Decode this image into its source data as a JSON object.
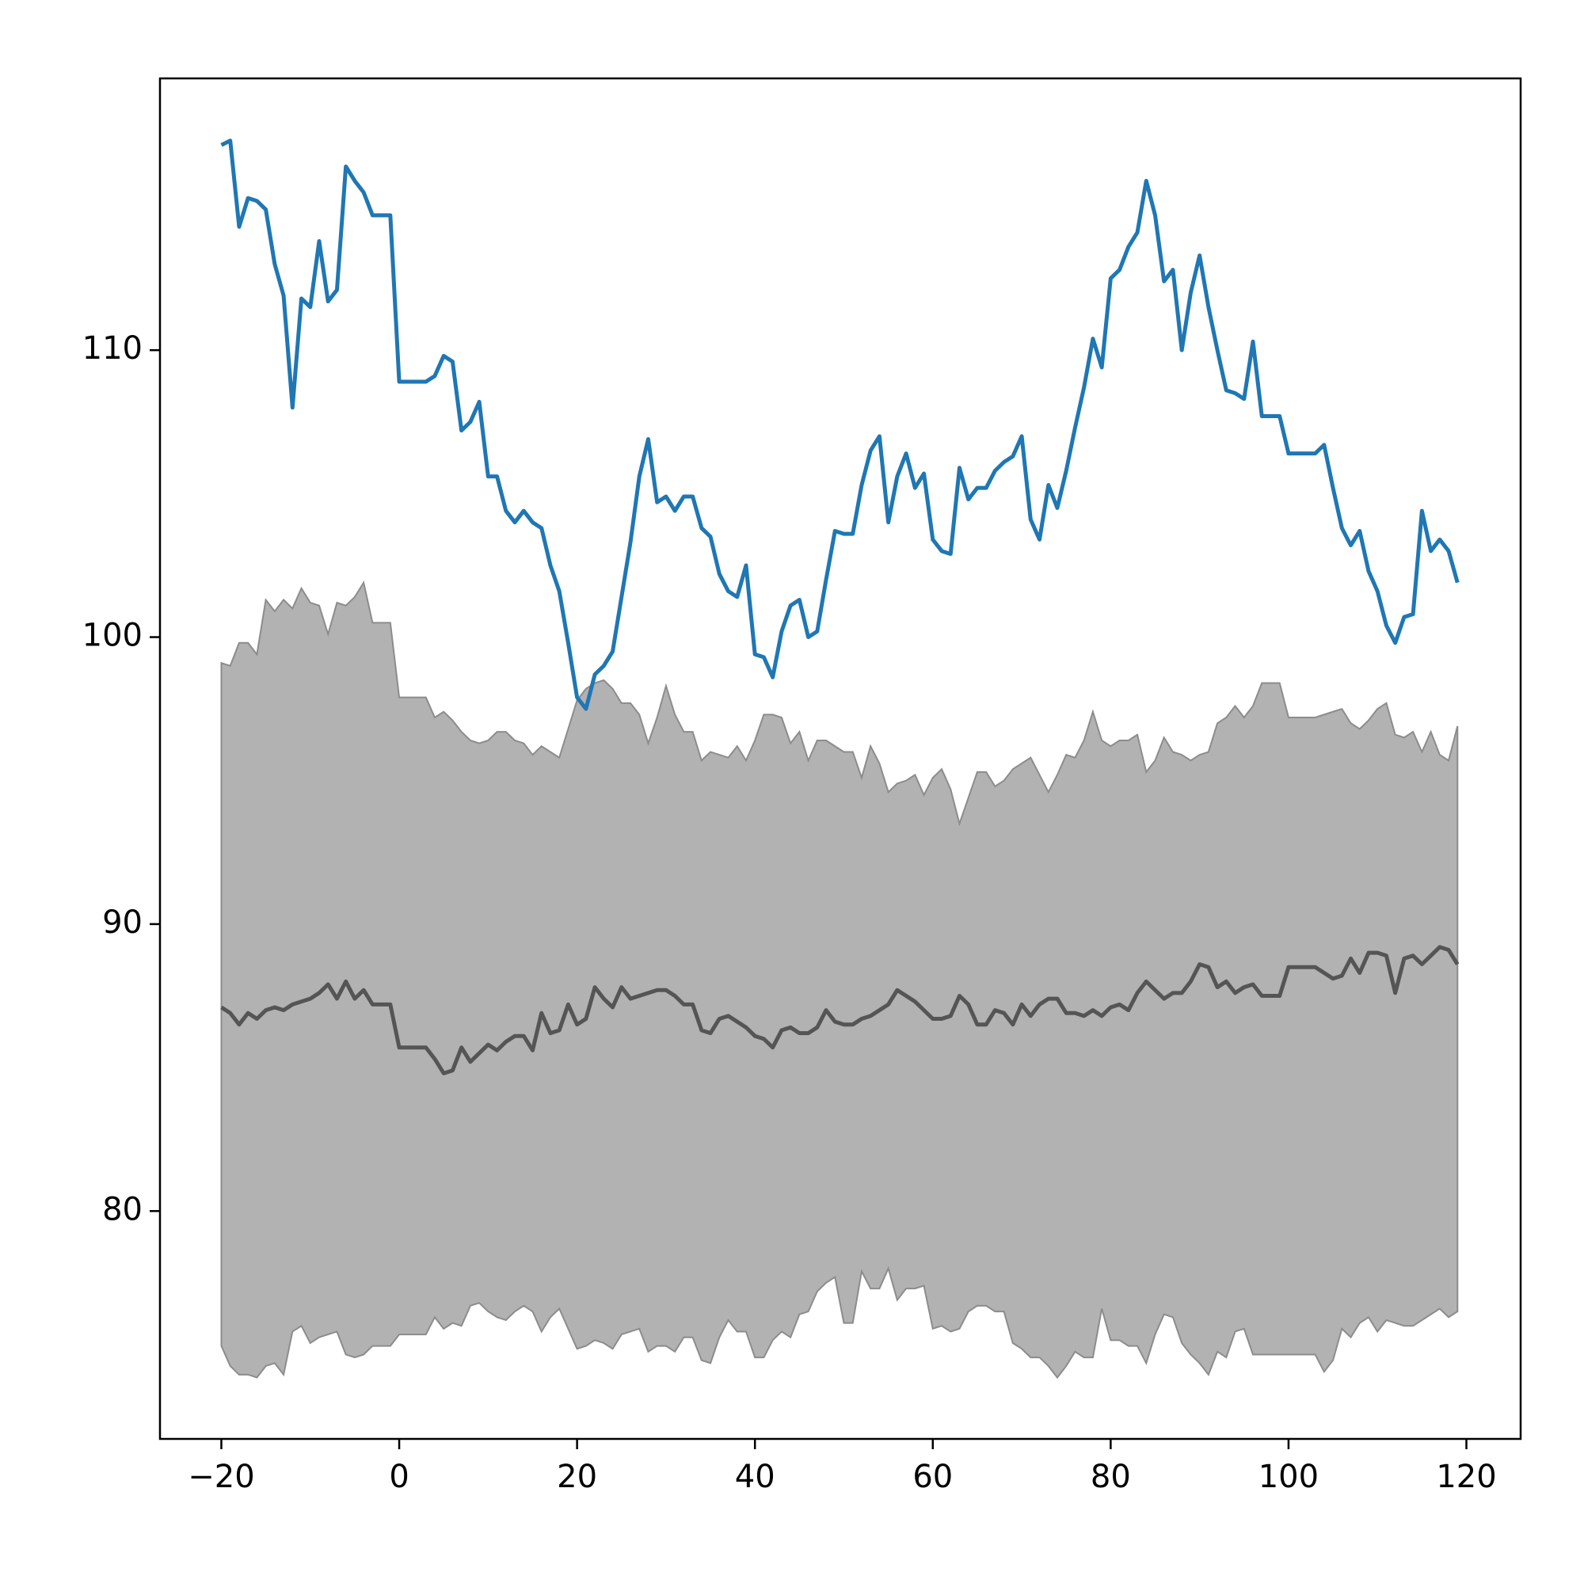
{
  "chart_data": {
    "type": "line",
    "x": [
      -20,
      -19,
      -18,
      -17,
      -16,
      -15,
      -14,
      -13,
      -12,
      -11,
      -10,
      -9,
      -8,
      -7,
      -6,
      -5,
      -4,
      -3,
      -2,
      -1,
      0,
      1,
      2,
      3,
      4,
      5,
      6,
      7,
      8,
      9,
      10,
      11,
      12,
      13,
      14,
      15,
      16,
      17,
      18,
      19,
      20,
      21,
      22,
      23,
      24,
      25,
      26,
      27,
      28,
      29,
      30,
      31,
      32,
      33,
      34,
      35,
      36,
      37,
      38,
      39,
      40,
      41,
      42,
      43,
      44,
      45,
      46,
      47,
      48,
      49,
      50,
      51,
      52,
      53,
      54,
      55,
      56,
      57,
      58,
      59,
      60,
      61,
      62,
      63,
      64,
      65,
      66,
      67,
      68,
      69,
      70,
      71,
      72,
      73,
      74,
      75,
      76,
      77,
      78,
      79,
      80,
      81,
      82,
      83,
      84,
      85,
      86,
      87,
      88,
      89,
      90,
      91,
      92,
      93,
      94,
      95,
      96,
      97,
      98,
      99,
      100,
      101,
      102,
      103,
      104,
      105,
      106,
      107,
      108,
      109,
      110,
      111,
      112,
      113,
      114,
      115,
      116,
      117,
      118,
      119
    ],
    "fill_between": {
      "color": "#b2b2b2",
      "edge_color": "#8c8c8c",
      "lower": [
        75.3,
        74.6,
        74.3,
        74.3,
        74.2,
        74.6,
        74.7,
        74.3,
        75.8,
        76.0,
        75.4,
        75.6,
        75.7,
        75.8,
        75.0,
        74.9,
        75.0,
        75.3,
        75.3,
        75.3,
        75.7,
        75.7,
        75.7,
        75.7,
        76.3,
        75.9,
        76.1,
        76.0,
        76.7,
        76.8,
        76.5,
        76.3,
        76.2,
        76.5,
        76.7,
        76.5,
        75.8,
        76.3,
        76.6,
        75.9,
        75.2,
        75.3,
        75.5,
        75.4,
        75.2,
        75.7,
        75.8,
        75.9,
        75.1,
        75.3,
        75.3,
        75.1,
        75.6,
        75.6,
        74.8,
        74.7,
        75.6,
        76.2,
        75.8,
        75.8,
        74.9,
        74.9,
        75.5,
        75.8,
        75.6,
        76.4,
        76.5,
        77.2,
        77.5,
        77.7,
        76.1,
        76.1,
        77.9,
        77.3,
        77.3,
        78.0,
        76.9,
        77.3,
        77.3,
        77.4,
        75.9,
        76.0,
        75.8,
        75.9,
        76.5,
        76.7,
        76.7,
        76.5,
        76.5,
        75.4,
        75.2,
        74.9,
        74.9,
        74.6,
        74.2,
        74.6,
        75.1,
        74.9,
        74.9,
        76.6,
        75.5,
        75.5,
        75.3,
        75.3,
        74.7,
        75.7,
        76.4,
        76.3,
        75.4,
        75.0,
        74.7,
        74.3,
        75.1,
        74.9,
        75.8,
        75.9,
        75.0,
        75.0,
        75.0,
        75.0,
        75.0,
        75.0,
        75.0,
        75.0,
        74.4,
        74.8,
        75.9,
        75.6,
        76.1,
        76.3,
        75.8,
        76.2,
        76.1,
        76.0,
        76.0,
        76.2,
        76.4,
        76.6,
        76.3,
        76.5
      ],
      "upper": [
        99.1,
        99.0,
        99.8,
        99.8,
        99.4,
        101.3,
        100.9,
        101.3,
        101.0,
        101.7,
        101.2,
        101.1,
        100.1,
        101.2,
        101.1,
        101.4,
        101.9,
        100.5,
        100.5,
        100.5,
        97.9,
        97.9,
        97.9,
        97.9,
        97.2,
        97.4,
        97.1,
        96.7,
        96.4,
        96.3,
        96.4,
        96.7,
        96.7,
        96.4,
        96.3,
        95.9,
        96.2,
        96.0,
        95.8,
        96.8,
        97.8,
        98.2,
        98.4,
        98.5,
        98.2,
        97.7,
        97.7,
        97.3,
        96.3,
        97.2,
        98.3,
        97.3,
        96.7,
        96.7,
        95.7,
        96.0,
        95.9,
        95.8,
        96.2,
        95.7,
        96.4,
        97.3,
        97.3,
        97.2,
        96.3,
        96.7,
        95.7,
        96.4,
        96.4,
        96.2,
        96.0,
        96.0,
        95.1,
        96.2,
        95.6,
        94.6,
        94.9,
        95.0,
        95.2,
        94.5,
        95.1,
        95.4,
        94.7,
        93.5,
        94.4,
        95.3,
        95.3,
        94.8,
        95.0,
        95.4,
        95.6,
        95.8,
        95.2,
        94.6,
        95.2,
        95.9,
        95.8,
        96.4,
        97.4,
        96.4,
        96.2,
        96.4,
        96.4,
        96.6,
        95.3,
        95.7,
        96.5,
        96.0,
        95.9,
        95.7,
        95.9,
        96.0,
        97.0,
        97.2,
        97.6,
        97.2,
        97.6,
        98.4,
        98.4,
        98.4,
        97.2,
        97.2,
        97.2,
        97.2,
        97.3,
        97.4,
        97.5,
        97.0,
        96.8,
        97.1,
        97.5,
        97.7,
        96.6,
        96.5,
        96.7,
        96.0,
        96.7,
        95.9,
        95.7,
        96.9
      ]
    },
    "series": [
      {
        "color": "#1f77b4",
        "values": [
          117.15,
          117.3,
          114.3,
          115.3,
          115.2,
          114.9,
          113.0,
          111.9,
          108.0,
          111.8,
          111.5,
          113.8,
          111.7,
          112.1,
          116.4,
          115.9,
          115.5,
          114.7,
          114.7,
          114.7,
          108.9,
          108.9,
          108.9,
          108.9,
          109.1,
          109.8,
          109.6,
          107.2,
          107.5,
          108.2,
          105.6,
          105.6,
          104.4,
          104.0,
          104.4,
          104.0,
          103.8,
          102.5,
          101.6,
          99.8,
          97.9,
          97.5,
          98.7,
          99.0,
          99.5,
          101.4,
          103.3,
          105.6,
          106.9,
          104.7,
          104.9,
          104.4,
          104.9,
          104.9,
          103.8,
          103.5,
          102.2,
          101.6,
          101.4,
          102.5,
          99.4,
          99.3,
          98.6,
          100.2,
          101.1,
          101.3,
          100.0,
          100.2,
          102.0,
          103.7,
          103.6,
          103.6,
          105.3,
          106.5,
          107.0,
          104.0,
          105.6,
          106.4,
          105.2,
          105.7,
          103.4,
          103.0,
          102.9,
          105.9,
          104.8,
          105.2,
          105.2,
          105.8,
          106.1,
          106.3,
          107.0,
          104.1,
          103.4,
          105.3,
          104.5,
          105.8,
          107.3,
          108.7,
          110.4,
          109.4,
          112.5,
          112.8,
          113.6,
          114.1,
          115.9,
          114.7,
          112.4,
          112.8,
          110.0,
          112.0,
          113.3,
          111.5,
          110.0,
          108.6,
          108.5,
          108.3,
          110.3,
          107.7,
          107.7,
          107.7,
          106.4,
          106.4,
          106.4,
          106.4,
          106.7,
          105.2,
          103.8,
          103.2,
          103.7,
          102.3,
          101.6,
          100.4,
          99.8,
          100.7,
          100.8,
          104.4,
          103.0,
          103.4,
          103.0,
          101.9
        ]
      },
      {
        "color": "#555555",
        "values": [
          87.1,
          86.9,
          86.5,
          86.9,
          86.7,
          87.0,
          87.1,
          87.0,
          87.2,
          87.3,
          87.4,
          87.6,
          87.9,
          87.4,
          88.0,
          87.4,
          87.7,
          87.2,
          87.2,
          87.2,
          85.7,
          85.7,
          85.7,
          85.7,
          85.3,
          84.8,
          84.9,
          85.7,
          85.2,
          85.5,
          85.8,
          85.6,
          85.9,
          86.1,
          86.1,
          85.6,
          86.9,
          86.2,
          86.3,
          87.2,
          86.5,
          86.7,
          87.8,
          87.4,
          87.1,
          87.8,
          87.4,
          87.5,
          87.6,
          87.7,
          87.7,
          87.5,
          87.2,
          87.2,
          86.3,
          86.2,
          86.7,
          86.8,
          86.6,
          86.4,
          86.1,
          86.0,
          85.7,
          86.3,
          86.4,
          86.2,
          86.2,
          86.4,
          87.0,
          86.6,
          86.5,
          86.5,
          86.7,
          86.8,
          87.0,
          87.2,
          87.7,
          87.5,
          87.3,
          87.0,
          86.7,
          86.7,
          86.8,
          87.5,
          87.2,
          86.5,
          86.5,
          87.0,
          86.9,
          86.5,
          87.2,
          86.8,
          87.2,
          87.4,
          87.4,
          86.9,
          86.9,
          86.8,
          87.0,
          86.8,
          87.1,
          87.2,
          87.0,
          87.6,
          88.0,
          87.7,
          87.4,
          87.6,
          87.6,
          88.0,
          88.6,
          88.5,
          87.8,
          88.0,
          87.6,
          87.8,
          87.9,
          87.5,
          87.5,
          87.5,
          88.5,
          88.5,
          88.5,
          88.5,
          88.3,
          88.1,
          88.2,
          88.8,
          88.3,
          89.0,
          89.0,
          88.9,
          87.6,
          88.8,
          88.9,
          88.6,
          88.9,
          89.2,
          89.1,
          88.6
        ]
      }
    ],
    "xlim": [
      -26.9,
      126.1
    ],
    "ylim": [
      72.06,
      119.47
    ],
    "xticks": [
      {
        "value": -20,
        "label": "−20"
      },
      0,
      20,
      40,
      60,
      80,
      100,
      120
    ],
    "yticks": [
      80,
      90,
      100,
      110
    ]
  }
}
